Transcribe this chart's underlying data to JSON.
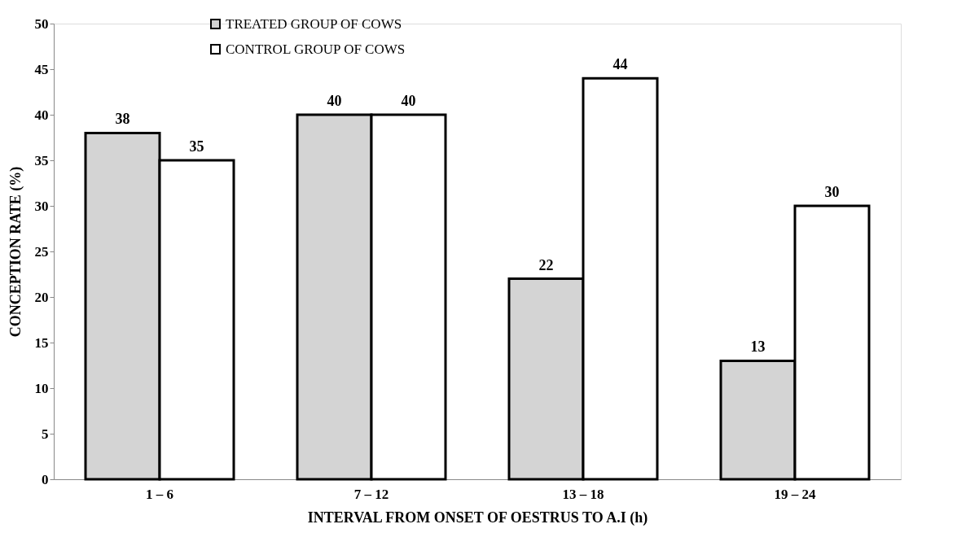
{
  "chart_data": {
    "type": "bar",
    "xlabel": "INTERVAL FROM ONSET OF OESTRUS TO A.I (h)",
    "ylabel": "CONCEPTION RATE (%)",
    "categories": [
      "1 – 6",
      "7 – 12",
      "13 – 18",
      "19 – 24"
    ],
    "series": [
      {
        "name": "TREATED GROUP OF COWS",
        "color": "#d4d4d4",
        "values": [
          38,
          40,
          22,
          13
        ]
      },
      {
        "name": "CONTROL GROUP OF COWS",
        "color": "#ffffff",
        "values": [
          35,
          40,
          44,
          30
        ]
      }
    ],
    "ylim": [
      0,
      50
    ],
    "yticks": [
      0,
      5,
      10,
      15,
      20,
      25,
      30,
      35,
      40,
      45,
      50
    ],
    "grid": false,
    "legend": "top",
    "data_labels": true
  }
}
